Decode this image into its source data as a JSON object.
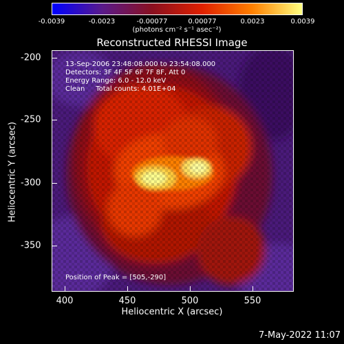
{
  "colorbar": {
    "ticks": [
      "-0.0039",
      "-0.0023",
      "-0.00077",
      "0.00077",
      "0.0023",
      "0.0039"
    ],
    "units": "(photons cm⁻² s⁻¹ asec⁻²)"
  },
  "plot": {
    "title": "Reconstructed RHESSI Image",
    "info_lines": [
      "13-Sep-2006 23:48:08.000 to 23:54:08.000",
      "Detectors: 3F 4F 5F 6F 7F 8F, Att 0",
      "Energy Range: 6.0 - 12.0 keV",
      "Clean     Total counts: 4.01E+04"
    ],
    "peak_label": "Position of Peak = [505,-290]",
    "xlabel": "Heliocentric X (arcsec)",
    "ylabel": "Heliocentric Y (arcsec)",
    "xticks": [
      "400",
      "450",
      "500",
      "550"
    ],
    "yticks": [
      "-200",
      "-250",
      "-300",
      "-350"
    ]
  },
  "timestamp": "7-May-2022 11:07",
  "colors": {
    "background": "#000000",
    "foreground": "#ffffff",
    "colormap": [
      "#0000ff",
      "#5a1a8a",
      "#8a1020",
      "#e02000",
      "#ff8000",
      "#ffff80"
    ]
  }
}
